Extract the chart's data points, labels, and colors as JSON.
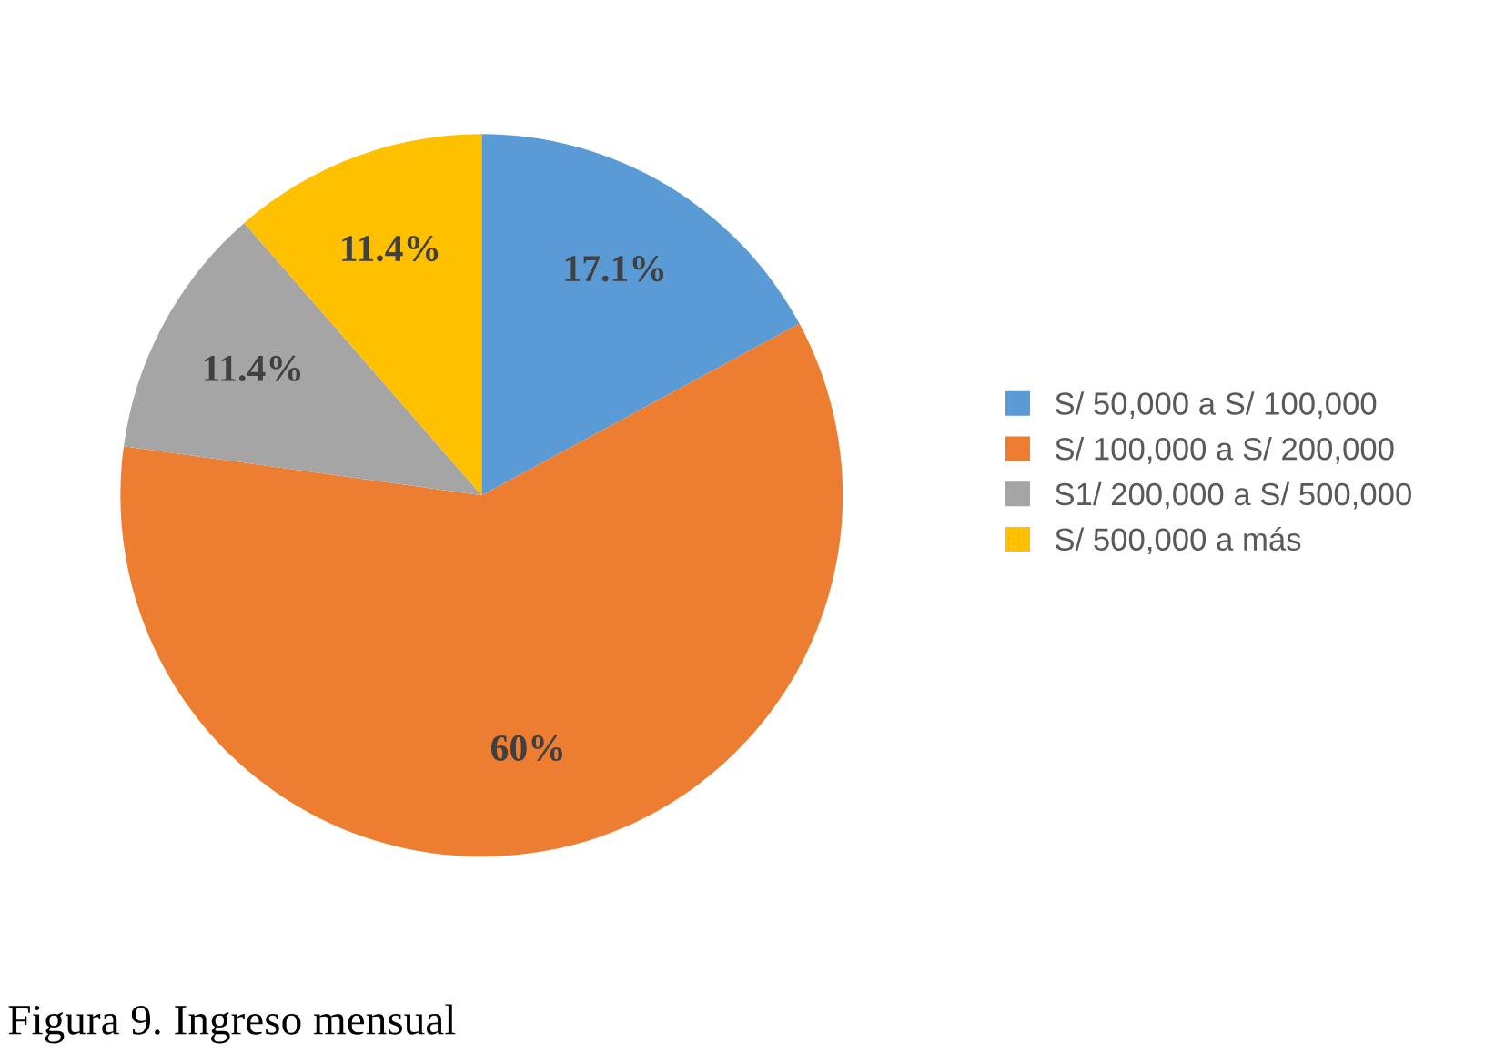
{
  "chart_data": {
    "type": "pie",
    "title": "Figura 9. Ingreso mensual",
    "categories": [
      "S/ 50,000 a S/ 100,000",
      "S/ 100,000 a S/ 200,000",
      "S1/ 200,000 a S/ 500,000",
      "S/ 500,000 a más"
    ],
    "values": [
      17.1,
      60,
      11.4,
      11.4
    ],
    "colors": [
      "#5b9bd5",
      "#ed7d31",
      "#a5a5a5",
      "#ffc000"
    ],
    "value_labels": [
      "17.1%",
      "60%",
      "11.4%",
      "11.4%"
    ],
    "legend": "right"
  }
}
